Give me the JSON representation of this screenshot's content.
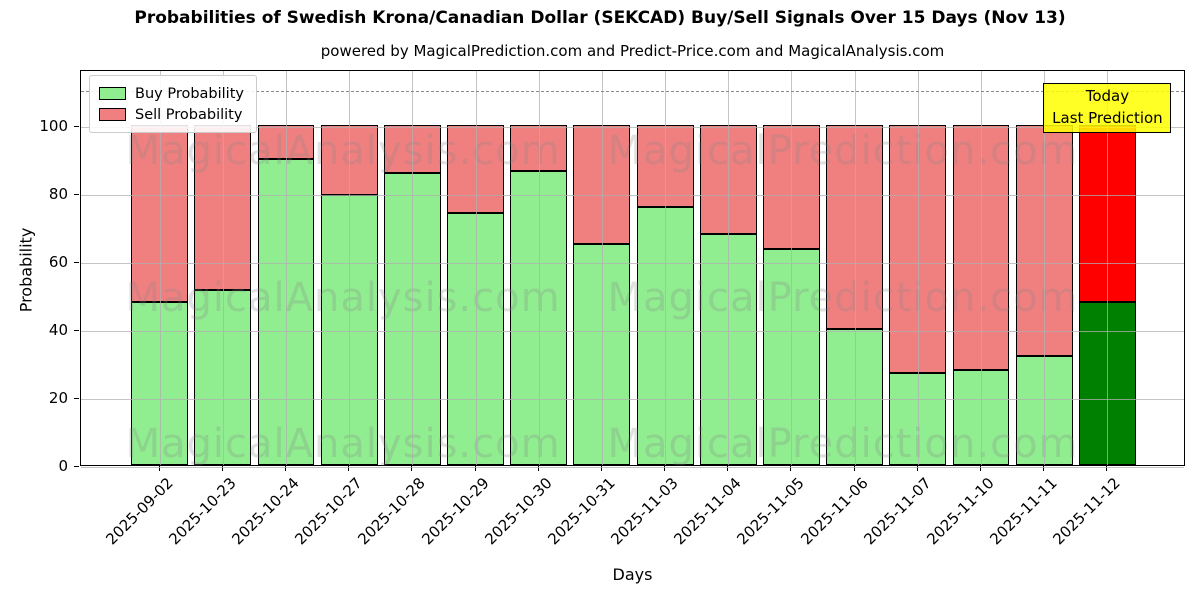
{
  "annotation": {
    "line1": "Today",
    "line2": "Last Prediction",
    "bg_color": "#ffff00",
    "border_color": "#000000"
  },
  "watermark": {
    "left_text": "MagicalAnalysis.com",
    "right_text": "MagicalPrediction.com"
  },
  "chart_data": {
    "type": "bar",
    "stacked": true,
    "title": "Probabilities of Swedish Krona/Canadian Dollar (SEKCAD) Buy/Sell Signals Over 15 Days (Nov 13)",
    "subtitle": "powered by MagicalPrediction.com and Predict-Price.com and MagicalAnalysis.com",
    "xlabel": "Days",
    "ylabel": "Probability",
    "categories": [
      "2025-09-02",
      "2025-10-23",
      "2025-10-24",
      "2025-10-27",
      "2025-10-28",
      "2025-10-29",
      "2025-10-30",
      "2025-10-31",
      "2025-11-03",
      "2025-11-04",
      "2025-11-05",
      "2025-11-06",
      "2025-11-07",
      "2025-11-10",
      "2025-11-11",
      "2025-11-12"
    ],
    "series": [
      {
        "name": "Buy Probability",
        "color": "#90ee90",
        "today_color": "#008000",
        "values": [
          48,
          51.5,
          90,
          79.5,
          86,
          74,
          86.5,
          65,
          76,
          68,
          63.5,
          40,
          27,
          28,
          32,
          48
        ]
      },
      {
        "name": "Sell Probability",
        "color": "#f08080",
        "today_color": "#ff0000",
        "values": [
          52,
          48.5,
          10,
          20.5,
          14,
          26,
          13.5,
          35,
          24,
          32,
          36.5,
          60,
          73,
          72,
          68,
          52
        ]
      }
    ],
    "bar_total": 100,
    "ylim": [
      0,
      116.5
    ],
    "yticks": [
      0,
      20,
      40,
      60,
      80,
      100
    ],
    "dashed_guideline_y": 110.5,
    "grid": true,
    "grid_above_bars": true,
    "legend_position": "upper left",
    "today_index": 15,
    "edge_color": "#000000"
  }
}
